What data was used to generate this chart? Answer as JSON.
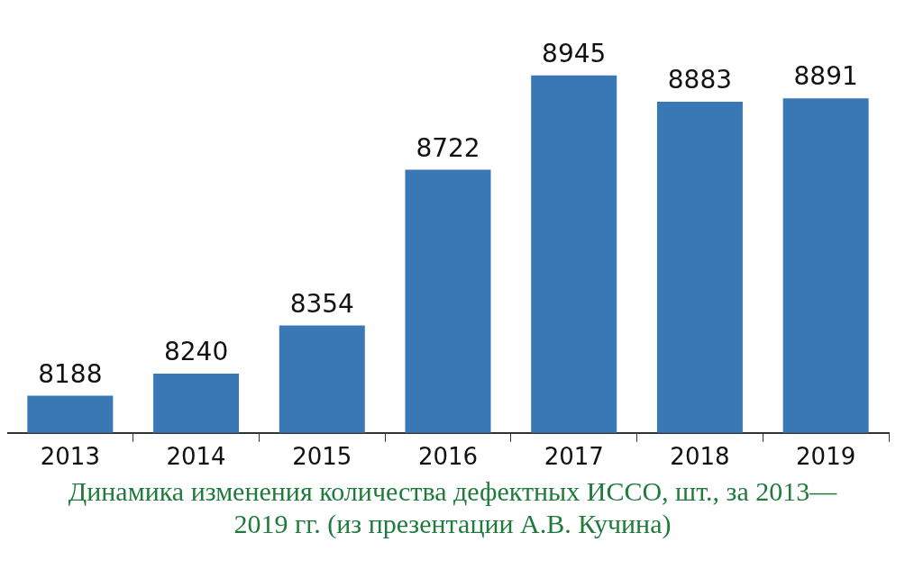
{
  "chart_data": {
    "type": "bar",
    "title": "Динамика изменения количества дефектных ИССО, шт., за 2013—2019 гг. (из презентации А.В. Кучина)",
    "categories": [
      "2013",
      "2014",
      "2015",
      "2016",
      "2017",
      "2018",
      "2019"
    ],
    "values": [
      8188,
      8240,
      8354,
      8722,
      8945,
      8883,
      8891
    ],
    "color": "#3a78b5",
    "tick_labels": "x",
    "data_labels": true,
    "grid": false,
    "legend": false
  }
}
